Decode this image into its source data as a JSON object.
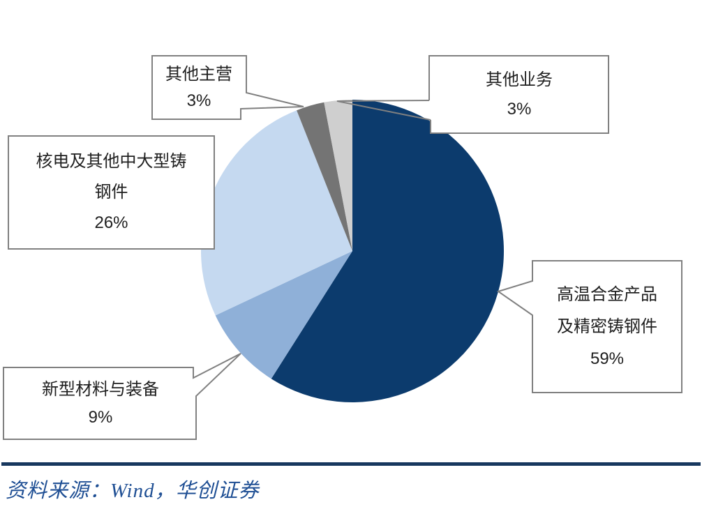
{
  "chart_data": {
    "type": "pie",
    "title": "",
    "start_angle": "12-oclock",
    "direction": "clockwise",
    "legend": "none",
    "data_labels": "callout-boxes",
    "slices": [
      {
        "label": "高温合金产品及精密铸钢件",
        "value": 59,
        "color": "#0C3B6D"
      },
      {
        "label": "新型材料与装备",
        "value": 9,
        "color": "#8FB0D8"
      },
      {
        "label": "核电及其他中大型铸钢件",
        "value": 26,
        "color": "#C5D9F0"
      },
      {
        "label": "其他主营",
        "value": 3,
        "color": "#747474"
      },
      {
        "label": "其他业务",
        "value": 3,
        "color": "#CFCFCF"
      }
    ]
  },
  "callouts": [
    {
      "label": "高温合金产品\n及精密铸钢件",
      "value_label": "59%"
    },
    {
      "label": "新型材料与装备",
      "value_label": "9%"
    },
    {
      "label": "核电及其他中大型铸\n钢件",
      "value_label": "26%"
    },
    {
      "label": "其他主营",
      "value_label": "3%"
    },
    {
      "label": "其他业务",
      "value_label": "3%"
    }
  ],
  "style": {
    "callout_border_color": "#808080",
    "divider_color": "#17375e",
    "source_text_color": "#1f4f94"
  },
  "footer": {
    "source_text": "资料来源：Wind，华创证券"
  }
}
